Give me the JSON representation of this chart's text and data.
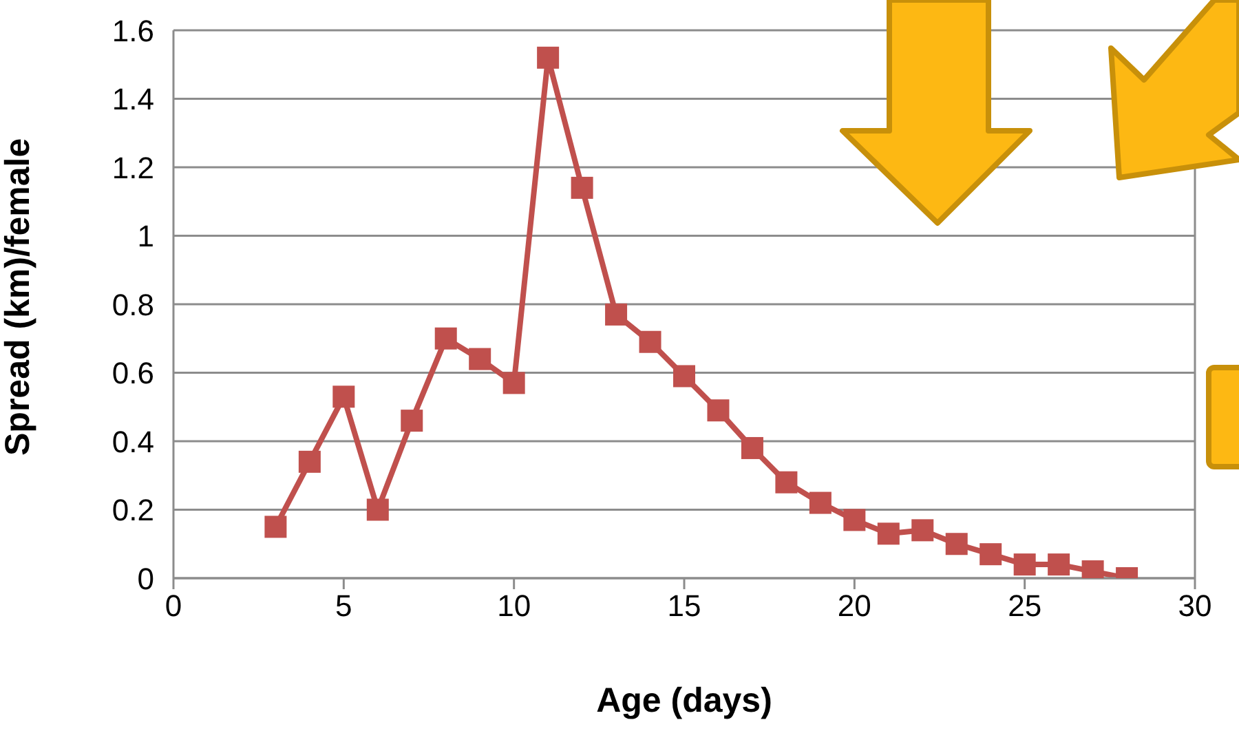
{
  "chart_data": {
    "type": "line",
    "xlabel": "Age (days)",
    "ylabel": "Spread (km)/female",
    "x": [
      3,
      4,
      5,
      6,
      7,
      8,
      9,
      10,
      11,
      12,
      13,
      14,
      15,
      16,
      17,
      18,
      19,
      20,
      21,
      22,
      23,
      24,
      25,
      26,
      27,
      28
    ],
    "series": [
      {
        "color": "#c0504d",
        "values": [
          0.15,
          0.34,
          0.53,
          0.2,
          0.46,
          0.7,
          0.64,
          0.57,
          1.52,
          1.14,
          0.77,
          0.69,
          0.59,
          0.49,
          0.38,
          0.28,
          0.22,
          0.17,
          0.13,
          0.14,
          0.1,
          0.07,
          0.04,
          0.04,
          0.02,
          0
        ]
      }
    ],
    "xlim": [
      0,
      30
    ],
    "xticks": [
      0,
      5,
      10,
      15,
      20,
      25,
      30
    ],
    "ylim": [
      0,
      1.6
    ],
    "yticks": [
      0,
      0.2,
      0.4,
      0.6,
      0.8,
      1,
      1.2,
      1.4,
      1.6
    ],
    "grid": "y",
    "marker": "square",
    "line_style": "solid",
    "legend": false
  }
}
